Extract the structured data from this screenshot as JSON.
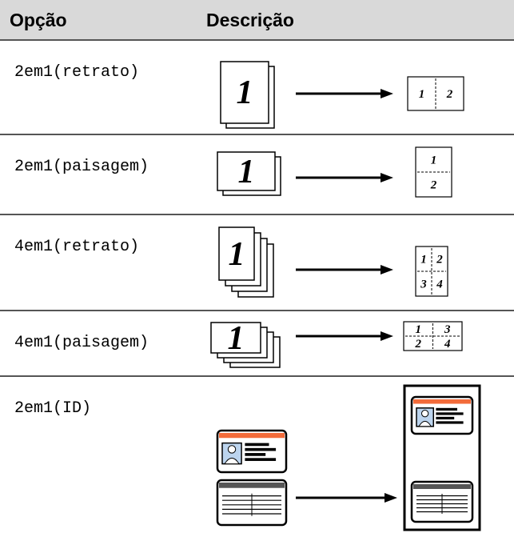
{
  "header": {
    "option": "Opção",
    "description": "Descrição"
  },
  "rows": [
    {
      "option": "2em1(retrato)",
      "source_label": "1",
      "result_labels": [
        "1",
        "2"
      ]
    },
    {
      "option": "2em1(paisagem)",
      "source_label": "1",
      "result_labels": [
        "1",
        "2"
      ]
    },
    {
      "option": "4em1(retrato)",
      "source_label": "1",
      "result_labels": [
        "1",
        "2",
        "3",
        "4"
      ]
    },
    {
      "option": "4em1(paisagem)",
      "source_label": "1",
      "result_labels": [
        "1",
        "3",
        "2",
        "4"
      ]
    },
    {
      "option": "2em1(ID)"
    }
  ]
}
